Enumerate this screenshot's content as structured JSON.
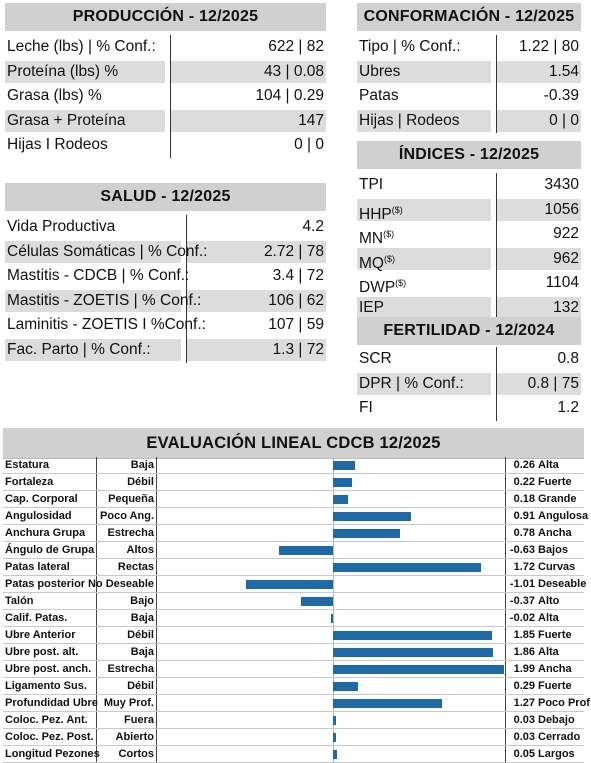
{
  "produccion": {
    "title": "PRODUCCIÓN - 12/2025",
    "rows": [
      {
        "label": "Leche (lbs) | % Conf.:",
        "value": "622 | 82"
      },
      {
        "label": "Proteína (lbs) %",
        "value": "43 | 0.08"
      },
      {
        "label": "Grasa (lbs) %",
        "value": "104 | 0.29"
      },
      {
        "label": "Grasa + Proteína",
        "value": "147"
      },
      {
        "label": "Hijas I Rodeos",
        "value": "0 | 0"
      }
    ]
  },
  "salud": {
    "title": "SALUD - 12/2025",
    "rows": [
      {
        "label": "Vida Productiva",
        "value": "4.2"
      },
      {
        "label": "Células Somáticas | % Conf.:",
        "value": "2.72 | 78"
      },
      {
        "label": "Mastitis - CDCB | % Conf.:",
        "value": "3.4 | 72"
      },
      {
        "label": "Mastitis - ZOETIS | % Conf.:",
        "value": "106 | 62"
      },
      {
        "label": "Laminitis - ZOETIS I %Conf.:",
        "value": "107 | 59"
      },
      {
        "label": "Fac. Parto | % Conf.:",
        "value": "1.3 | 72"
      }
    ]
  },
  "conformacion": {
    "title": "CONFORMACIÓN - 12/2025",
    "rows": [
      {
        "label": "Tipo | % Conf.:",
        "value": "1.22 | 80"
      },
      {
        "label": "Ubres",
        "value": "1.54"
      },
      {
        "label": "Patas",
        "value": "-0.39"
      },
      {
        "label": "Hijas | Rodeos",
        "value": "0 | 0"
      }
    ]
  },
  "indices": {
    "title": "ÍNDICES - 12/2025",
    "rows": [
      {
        "label": "TPI",
        "sup": "",
        "value": "3430"
      },
      {
        "label": "HHP",
        "sup": "($)",
        "value": "1056"
      },
      {
        "label": "MN",
        "sup": "($)",
        "value": "922"
      },
      {
        "label": "MQ",
        "sup": "($)",
        "value": "962"
      },
      {
        "label": "DWP",
        "sup": "($)",
        "value": "1104"
      },
      {
        "label": "IEP",
        "sup": "",
        "value": "132"
      }
    ]
  },
  "fertilidad": {
    "title": "FERTILIDAD - 12/2024",
    "rows": [
      {
        "label": "SCR",
        "value": "0.8"
      },
      {
        "label": "DPR | % Conf.:",
        "value": "0.8 | 75"
      },
      {
        "label": "FI",
        "value": "1.2"
      }
    ]
  },
  "chart_data": {
    "type": "bar",
    "orientation": "horizontal",
    "title": "EVALUACIÓN LINEAL CDCB 12/2025",
    "bar_color": "#1f6aa5",
    "xlim": [
      -2.0,
      2.0
    ],
    "traits": [
      {
        "name": "Estatura",
        "low": "Baja",
        "high": "Alta",
        "value": 0.26,
        "label": "0.26"
      },
      {
        "name": "Fortaleza",
        "low": "Débil",
        "high": "Fuerte",
        "value": 0.22,
        "label": "0.22"
      },
      {
        "name": "Cap. Corporal",
        "low": "Pequeña",
        "high": "Grande",
        "value": 0.18,
        "label": "0.18"
      },
      {
        "name": "Angulosidad",
        "low": "Poco Ang.",
        "high": "Angulosa",
        "value": 0.91,
        "label": "0.91"
      },
      {
        "name": "Anchura Grupa",
        "low": "Estrecha",
        "high": "Ancha",
        "value": 0.78,
        "label": "0.78"
      },
      {
        "name": "Ángulo de Grupa",
        "low": "Altos",
        "high": "Bajos",
        "value": -0.63,
        "label": "-0.63"
      },
      {
        "name": "Patas lateral",
        "low": "Rectas",
        "high": "Curvas",
        "value": 1.72,
        "label": "1.72"
      },
      {
        "name": "Patas posterior",
        "low": "No Deseable",
        "high": "Deseable",
        "value": -1.01,
        "label": "-1.01"
      },
      {
        "name": "Talón",
        "low": "Bajo",
        "high": "Alto",
        "value": -0.37,
        "label": "-0.37"
      },
      {
        "name": "Calif. Patas.",
        "low": "Baja",
        "high": "Alta",
        "value": -0.02,
        "label": "-0.02"
      },
      {
        "name": "Ubre Anterior",
        "low": "Débil",
        "high": "Fuerte",
        "value": 1.85,
        "label": "1.85"
      },
      {
        "name": "Ubre post. alt.",
        "low": "Baja",
        "high": "Alta",
        "value": 1.86,
        "label": "1.86"
      },
      {
        "name": "Ubre post. anch.",
        "low": "Estrecha",
        "high": "Ancha",
        "value": 1.99,
        "label": "1.99"
      },
      {
        "name": "Ligamento Sus.",
        "low": "Débil",
        "high": "Fuerte",
        "value": 0.29,
        "label": "0.29"
      },
      {
        "name": "Profundidad Ubre",
        "low": "Muy Prof.",
        "high": "Poco Prof.",
        "value": 1.27,
        "label": "1.27"
      },
      {
        "name": "Coloc. Pez. Ant.",
        "low": "Fuera",
        "high": "Debajo",
        "value": 0.03,
        "label": "0.03"
      },
      {
        "name": "Coloc. Pez. Post.",
        "low": "Abierto",
        "high": "Cerrado",
        "value": 0.03,
        "label": "0.03"
      },
      {
        "name": "Longitud Pezones",
        "low": "Cortos",
        "high": "Largos",
        "value": 0.05,
        "label": "0.05"
      }
    ]
  }
}
